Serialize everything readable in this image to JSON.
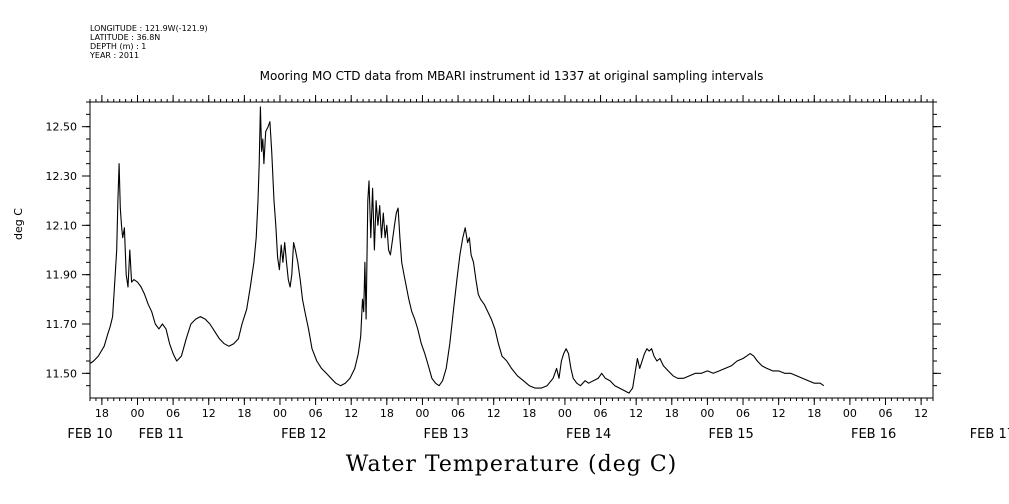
{
  "header": {
    "longitude": "LONGITUDE : 121.9W(-121.9)",
    "latitude": "LATITUDE : 36.8N",
    "depth": "DEPTH (m) : 1",
    "year": "YEAR : 2011"
  },
  "chart_data": {
    "type": "line",
    "title": "Mooring MO CTD data from MBARI instrument id 1337 at original sampling intervals",
    "xlabel": "Water Temperature (deg C)",
    "ylabel": "deg C",
    "xunit": "hours from FEB 10 00",
    "xlim": [
      -8,
      134
    ],
    "ylim": [
      11.4,
      12.6
    ],
    "yticks": [
      "11.50",
      "11.70",
      "11.90",
      "12.10",
      "12.30",
      "12.50"
    ],
    "ytick_values": [
      11.5,
      11.7,
      11.9,
      12.1,
      12.3,
      12.5
    ],
    "hour_ticks": [
      {
        "t": -6,
        "label": "18"
      },
      {
        "t": 0,
        "label": "00"
      },
      {
        "t": 6,
        "label": "06"
      },
      {
        "t": 12,
        "label": "12"
      },
      {
        "t": 18,
        "label": "18"
      },
      {
        "t": 24,
        "label": "00"
      },
      {
        "t": 30,
        "label": "06"
      },
      {
        "t": 36,
        "label": "12"
      },
      {
        "t": 42,
        "label": "18"
      },
      {
        "t": 48,
        "label": "00"
      },
      {
        "t": 54,
        "label": "06"
      },
      {
        "t": 60,
        "label": "12"
      },
      {
        "t": 66,
        "label": "18"
      },
      {
        "t": 72,
        "label": "00"
      },
      {
        "t": 78,
        "label": "06"
      },
      {
        "t": 84,
        "label": "12"
      },
      {
        "t": 90,
        "label": "18"
      },
      {
        "t": 96,
        "label": "00"
      },
      {
        "t": 102,
        "label": "06"
      },
      {
        "t": 108,
        "label": "12"
      },
      {
        "t": 114,
        "label": "18"
      },
      {
        "t": 120,
        "label": "00"
      },
      {
        "t": 126,
        "label": "06"
      },
      {
        "t": 132,
        "label": "12"
      }
    ],
    "day_labels": [
      {
        "t": -8,
        "label": "FEB 10"
      },
      {
        "t": 4,
        "label": "FEB 11"
      },
      {
        "t": 28,
        "label": "FEB 12"
      },
      {
        "t": 52,
        "label": "FEB 13"
      },
      {
        "t": 76,
        "label": "FEB 14"
      },
      {
        "t": 100,
        "label": "FEB 15"
      },
      {
        "t": 124,
        "label": "FEB 16"
      },
      {
        "t": 144,
        "label": "FEB 17"
      }
    ],
    "series": [
      {
        "points": [
          [
            -8.0,
            11.54
          ],
          [
            -7.4,
            11.55
          ],
          [
            -6.6,
            11.57
          ],
          [
            -5.6,
            11.61
          ],
          [
            -5.0,
            11.66
          ],
          [
            -4.6,
            11.69
          ],
          [
            -4.2,
            11.73
          ],
          [
            -3.8,
            11.88
          ],
          [
            -3.5,
            12.0
          ],
          [
            -3.3,
            12.2
          ],
          [
            -3.1,
            12.35
          ],
          [
            -2.9,
            12.17
          ],
          [
            -2.7,
            12.1
          ],
          [
            -2.5,
            12.05
          ],
          [
            -2.2,
            12.09
          ],
          [
            -1.9,
            11.9
          ],
          [
            -1.6,
            11.85
          ],
          [
            -1.3,
            12.0
          ],
          [
            -1.0,
            11.87
          ],
          [
            -0.6,
            11.88
          ],
          [
            0.0,
            11.87
          ],
          [
            0.6,
            11.85
          ],
          [
            1.2,
            11.82
          ],
          [
            1.8,
            11.78
          ],
          [
            2.4,
            11.75
          ],
          [
            3.0,
            11.7
          ],
          [
            3.6,
            11.68
          ],
          [
            4.2,
            11.7
          ],
          [
            4.8,
            11.68
          ],
          [
            5.4,
            11.62
          ],
          [
            6.0,
            11.58
          ],
          [
            6.6,
            11.55
          ],
          [
            7.4,
            11.57
          ],
          [
            8.2,
            11.64
          ],
          [
            9.0,
            11.7
          ],
          [
            9.8,
            11.72
          ],
          [
            10.6,
            11.73
          ],
          [
            11.4,
            11.72
          ],
          [
            12.2,
            11.7
          ],
          [
            13.0,
            11.67
          ],
          [
            13.8,
            11.64
          ],
          [
            14.6,
            11.62
          ],
          [
            15.4,
            11.61
          ],
          [
            16.2,
            11.62
          ],
          [
            17.0,
            11.64
          ],
          [
            17.6,
            11.7
          ],
          [
            18.4,
            11.76
          ],
          [
            19.0,
            11.85
          ],
          [
            19.6,
            11.95
          ],
          [
            20.0,
            12.05
          ],
          [
            20.3,
            12.2
          ],
          [
            20.5,
            12.35
          ],
          [
            20.7,
            12.58
          ],
          [
            20.9,
            12.4
          ],
          [
            21.1,
            12.45
          ],
          [
            21.3,
            12.35
          ],
          [
            21.6,
            12.48
          ],
          [
            22.0,
            12.5
          ],
          [
            22.3,
            12.52
          ],
          [
            22.6,
            12.4
          ],
          [
            23.0,
            12.2
          ],
          [
            23.3,
            12.1
          ],
          [
            23.6,
            11.97
          ],
          [
            23.9,
            11.92
          ],
          [
            24.2,
            12.02
          ],
          [
            24.5,
            11.95
          ],
          [
            24.8,
            12.03
          ],
          [
            25.1,
            11.95
          ],
          [
            25.4,
            11.88
          ],
          [
            25.7,
            11.85
          ],
          [
            26.0,
            11.9
          ],
          [
            26.3,
            12.03
          ],
          [
            26.6,
            12.0
          ],
          [
            27.0,
            11.95
          ],
          [
            27.4,
            11.88
          ],
          [
            27.8,
            11.8
          ],
          [
            28.2,
            11.75
          ],
          [
            28.8,
            11.68
          ],
          [
            29.4,
            11.6
          ],
          [
            30.2,
            11.55
          ],
          [
            31.0,
            11.52
          ],
          [
            31.8,
            11.5
          ],
          [
            32.6,
            11.48
          ],
          [
            33.4,
            11.46
          ],
          [
            34.2,
            11.45
          ],
          [
            35.0,
            11.46
          ],
          [
            35.8,
            11.48
          ],
          [
            36.6,
            11.52
          ],
          [
            37.2,
            11.58
          ],
          [
            37.6,
            11.65
          ],
          [
            37.9,
            11.8
          ],
          [
            38.1,
            11.75
          ],
          [
            38.3,
            11.95
          ],
          [
            38.5,
            11.72
          ],
          [
            38.8,
            12.2
          ],
          [
            39.0,
            12.28
          ],
          [
            39.3,
            12.05
          ],
          [
            39.6,
            12.25
          ],
          [
            39.9,
            12.0
          ],
          [
            40.2,
            12.2
          ],
          [
            40.5,
            12.1
          ],
          [
            40.8,
            12.18
          ],
          [
            41.1,
            12.05
          ],
          [
            41.4,
            12.15
          ],
          [
            41.7,
            12.05
          ],
          [
            42.0,
            12.1
          ],
          [
            42.3,
            12.0
          ],
          [
            42.6,
            11.98
          ],
          [
            43.0,
            12.05
          ],
          [
            43.3,
            12.1
          ],
          [
            43.6,
            12.15
          ],
          [
            43.9,
            12.17
          ],
          [
            44.2,
            12.05
          ],
          [
            44.5,
            11.95
          ],
          [
            44.9,
            11.9
          ],
          [
            45.3,
            11.85
          ],
          [
            45.7,
            11.8
          ],
          [
            46.2,
            11.75
          ],
          [
            46.7,
            11.72
          ],
          [
            47.2,
            11.68
          ],
          [
            47.8,
            11.62
          ],
          [
            48.4,
            11.58
          ],
          [
            49.0,
            11.53
          ],
          [
            49.6,
            11.48
          ],
          [
            50.2,
            11.46
          ],
          [
            50.8,
            11.45
          ],
          [
            51.4,
            11.47
          ],
          [
            52.0,
            11.52
          ],
          [
            52.6,
            11.62
          ],
          [
            53.2,
            11.75
          ],
          [
            53.8,
            11.88
          ],
          [
            54.3,
            11.98
          ],
          [
            54.8,
            12.05
          ],
          [
            55.2,
            12.09
          ],
          [
            55.6,
            12.03
          ],
          [
            55.9,
            12.05
          ],
          [
            56.2,
            11.98
          ],
          [
            56.6,
            11.95
          ],
          [
            57.0,
            11.88
          ],
          [
            57.4,
            11.82
          ],
          [
            57.8,
            11.8
          ],
          [
            58.4,
            11.78
          ],
          [
            59.0,
            11.75
          ],
          [
            59.6,
            11.72
          ],
          [
            60.2,
            11.68
          ],
          [
            60.8,
            11.62
          ],
          [
            61.4,
            11.57
          ],
          [
            62.2,
            11.55
          ],
          [
            63.0,
            11.52
          ],
          [
            64.0,
            11.49
          ],
          [
            65.0,
            11.47
          ],
          [
            66.0,
            11.45
          ],
          [
            67.0,
            11.44
          ],
          [
            68.0,
            11.44
          ],
          [
            69.0,
            11.45
          ],
          [
            70.0,
            11.48
          ],
          [
            70.6,
            11.52
          ],
          [
            71.0,
            11.48
          ],
          [
            71.4,
            11.55
          ],
          [
            71.8,
            11.58
          ],
          [
            72.2,
            11.6
          ],
          [
            72.6,
            11.58
          ],
          [
            73.0,
            11.52
          ],
          [
            73.4,
            11.48
          ],
          [
            74.0,
            11.46
          ],
          [
            74.6,
            11.45
          ],
          [
            75.4,
            11.47
          ],
          [
            76.0,
            11.46
          ],
          [
            76.8,
            11.47
          ],
          [
            77.6,
            11.48
          ],
          [
            78.2,
            11.5
          ],
          [
            78.8,
            11.48
          ],
          [
            79.6,
            11.47
          ],
          [
            80.4,
            11.45
          ],
          [
            81.2,
            11.44
          ],
          [
            82.0,
            11.43
          ],
          [
            82.8,
            11.42
          ],
          [
            83.4,
            11.44
          ],
          [
            83.8,
            11.5
          ],
          [
            84.2,
            11.56
          ],
          [
            84.6,
            11.52
          ],
          [
            85.0,
            11.55
          ],
          [
            85.4,
            11.58
          ],
          [
            85.8,
            11.6
          ],
          [
            86.2,
            11.59
          ],
          [
            86.6,
            11.6
          ],
          [
            87.0,
            11.57
          ],
          [
            87.5,
            11.55
          ],
          [
            88.0,
            11.56
          ],
          [
            88.6,
            11.53
          ],
          [
            89.4,
            11.51
          ],
          [
            90.2,
            11.49
          ],
          [
            91.0,
            11.48
          ],
          [
            92.0,
            11.48
          ],
          [
            93.0,
            11.49
          ],
          [
            94.0,
            11.5
          ],
          [
            95.0,
            11.5
          ],
          [
            96.0,
            11.51
          ],
          [
            97.0,
            11.5
          ],
          [
            98.0,
            11.51
          ],
          [
            99.0,
            11.52
          ],
          [
            100.0,
            11.53
          ],
          [
            101.0,
            11.55
          ],
          [
            102.0,
            11.56
          ],
          [
            102.6,
            11.57
          ],
          [
            103.2,
            11.58
          ],
          [
            103.8,
            11.57
          ],
          [
            104.4,
            11.55
          ],
          [
            105.2,
            11.53
          ],
          [
            106.0,
            11.52
          ],
          [
            107.0,
            11.51
          ],
          [
            108.0,
            11.51
          ],
          [
            109.0,
            11.5
          ],
          [
            110.0,
            11.5
          ],
          [
            111.0,
            11.49
          ],
          [
            112.0,
            11.48
          ],
          [
            113.0,
            11.47
          ],
          [
            114.0,
            11.46
          ],
          [
            115.0,
            11.46
          ],
          [
            115.6,
            11.45
          ]
        ]
      }
    ]
  }
}
